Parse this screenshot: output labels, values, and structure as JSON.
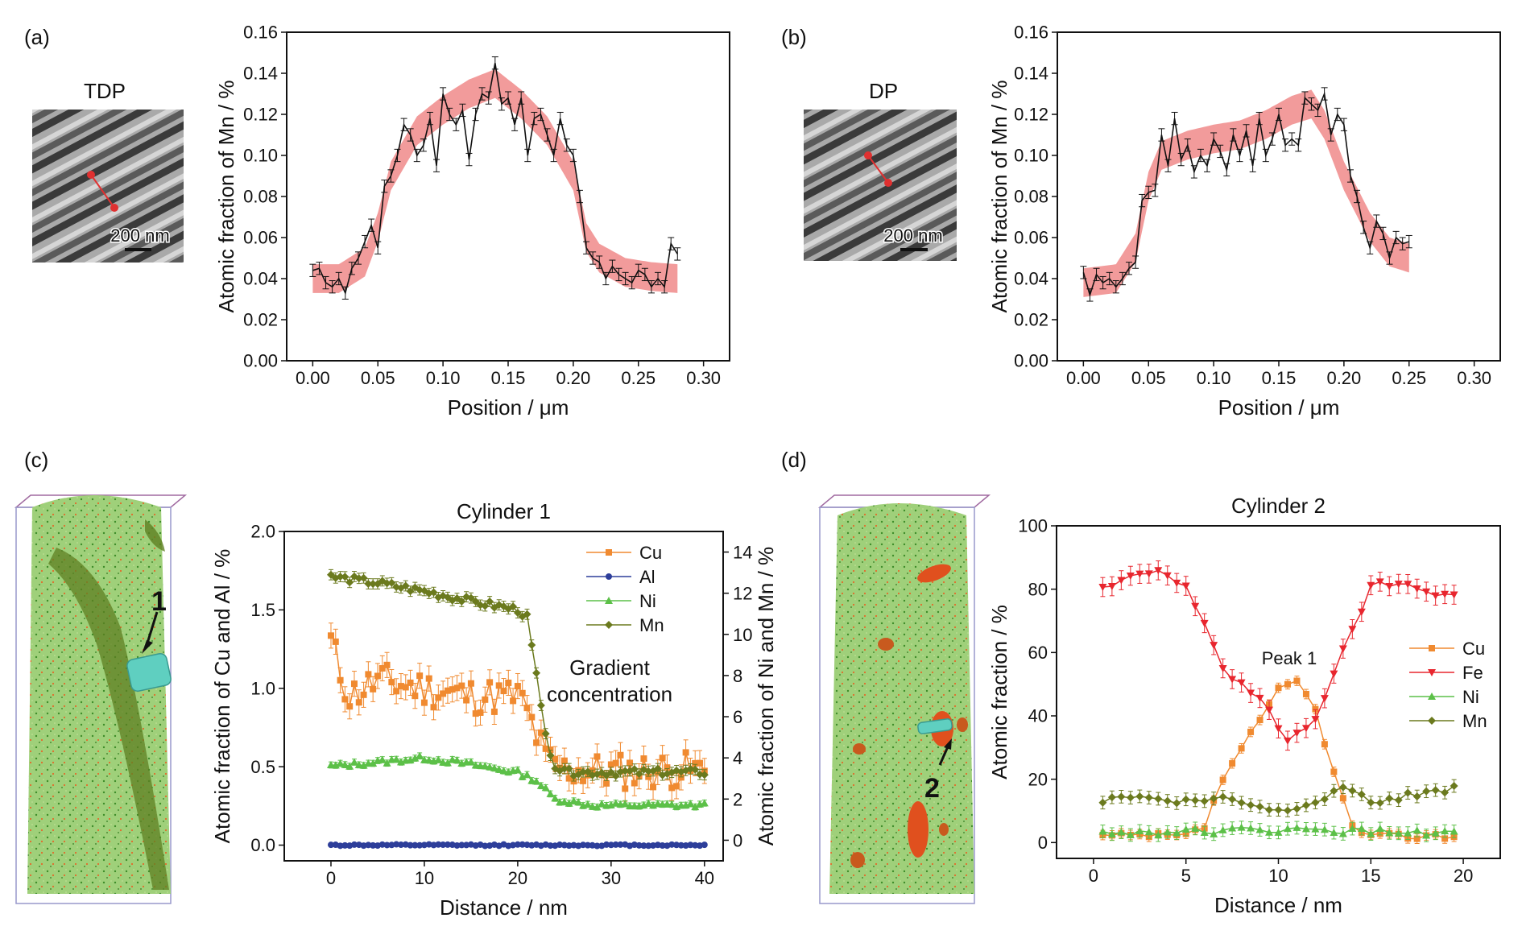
{
  "panels": {
    "a": {
      "label": "(a)",
      "image_title": "TDP",
      "scale_bar": "200 nm"
    },
    "b": {
      "label": "(b)",
      "image_title": "DP",
      "scale_bar": "200 nm"
    },
    "c": {
      "label": "(c)",
      "annotation_1": "Gradient",
      "annotation_2": "concentration",
      "marker": "1"
    },
    "d": {
      "label": "(d)",
      "annotation": "Peak 1",
      "marker": "2"
    }
  },
  "colors": {
    "Cu": "#f08a30",
    "Al": "#2d3e9a",
    "Ni": "#5cc048",
    "Mn": "#6b7a1e",
    "Fe": "#e8262e",
    "band": "#f08a8a",
    "line": "#111111"
  },
  "chart_data": [
    {
      "id": "a",
      "type": "line",
      "title": "",
      "xlabel": "Position / μm",
      "ylabel": "Atomic fraction of Mn / %",
      "xlim": [
        -0.02,
        0.32
      ],
      "ylim": [
        0.0,
        0.16
      ],
      "xticks": [
        0.0,
        0.05,
        0.1,
        0.15,
        0.2,
        0.25,
        0.3
      ],
      "xtick_labels": [
        "0.00",
        "0.05",
        "0.10",
        "0.15",
        "0.20",
        "0.25",
        "0.30"
      ],
      "yticks": [
        0.0,
        0.02,
        0.04,
        0.06,
        0.08,
        0.1,
        0.12,
        0.14,
        0.16
      ],
      "ytick_labels": [
        "0.00",
        "0.02",
        "0.04",
        "0.06",
        "0.08",
        "0.10",
        "0.12",
        "0.14",
        "0.16"
      ],
      "band": {
        "x": [
          0.0,
          0.02,
          0.04,
          0.05,
          0.06,
          0.08,
          0.1,
          0.12,
          0.14,
          0.16,
          0.18,
          0.2,
          0.21,
          0.22,
          0.24,
          0.26,
          0.28
        ],
        "center": [
          0.04,
          0.04,
          0.048,
          0.065,
          0.09,
          0.112,
          0.122,
          0.13,
          0.135,
          0.125,
          0.112,
          0.09,
          0.06,
          0.05,
          0.043,
          0.041,
          0.04
        ],
        "half_width": 0.007
      },
      "series": [
        {
          "name": "",
          "x": [
            0.0,
            0.005,
            0.01,
            0.015,
            0.02,
            0.025,
            0.03,
            0.035,
            0.04,
            0.045,
            0.05,
            0.055,
            0.06,
            0.065,
            0.07,
            0.075,
            0.08,
            0.085,
            0.09,
            0.095,
            0.1,
            0.105,
            0.11,
            0.115,
            0.12,
            0.125,
            0.13,
            0.135,
            0.14,
            0.145,
            0.15,
            0.155,
            0.16,
            0.165,
            0.17,
            0.175,
            0.18,
            0.185,
            0.19,
            0.195,
            0.2,
            0.205,
            0.21,
            0.215,
            0.22,
            0.225,
            0.23,
            0.235,
            0.24,
            0.245,
            0.25,
            0.255,
            0.26,
            0.265,
            0.27,
            0.275,
            0.28
          ],
          "y": [
            0.044,
            0.045,
            0.038,
            0.036,
            0.04,
            0.033,
            0.045,
            0.05,
            0.058,
            0.066,
            0.055,
            0.085,
            0.09,
            0.1,
            0.115,
            0.11,
            0.1,
            0.105,
            0.118,
            0.095,
            0.13,
            0.12,
            0.115,
            0.122,
            0.098,
            0.12,
            0.13,
            0.128,
            0.145,
            0.125,
            0.128,
            0.115,
            0.128,
            0.1,
            0.118,
            0.12,
            0.11,
            0.1,
            0.118,
            0.105,
            0.1,
            0.08,
            0.055,
            0.05,
            0.048,
            0.04,
            0.046,
            0.042,
            0.04,
            0.038,
            0.044,
            0.042,
            0.036,
            0.04,
            0.036,
            0.057,
            0.052
          ],
          "err": 0.003
        }
      ]
    },
    {
      "id": "b",
      "type": "line",
      "title": "",
      "xlabel": "Position / μm",
      "ylabel": "Atomic fraction of Mn / %",
      "xlim": [
        -0.02,
        0.32
      ],
      "ylim": [
        0.0,
        0.16
      ],
      "xticks": [
        0.0,
        0.05,
        0.1,
        0.15,
        0.2,
        0.25,
        0.3
      ],
      "xtick_labels": [
        "0.00",
        "0.05",
        "0.10",
        "0.15",
        "0.20",
        "0.25",
        "0.30"
      ],
      "yticks": [
        0.0,
        0.02,
        0.04,
        0.06,
        0.08,
        0.1,
        0.12,
        0.14,
        0.16
      ],
      "ytick_labels": [
        "0.00",
        "0.02",
        "0.04",
        "0.06",
        "0.08",
        "0.10",
        "0.12",
        "0.14",
        "0.16"
      ],
      "band": {
        "x": [
          0.0,
          0.025,
          0.04,
          0.05,
          0.06,
          0.08,
          0.1,
          0.12,
          0.14,
          0.16,
          0.175,
          0.185,
          0.2,
          0.22,
          0.235,
          0.25
        ],
        "center": [
          0.038,
          0.04,
          0.055,
          0.085,
          0.1,
          0.105,
          0.108,
          0.11,
          0.115,
          0.122,
          0.125,
          0.115,
          0.09,
          0.065,
          0.053,
          0.05
        ],
        "half_width": 0.007
      },
      "series": [
        {
          "name": "",
          "x": [
            0.0,
            0.005,
            0.01,
            0.015,
            0.02,
            0.025,
            0.03,
            0.035,
            0.04,
            0.045,
            0.05,
            0.055,
            0.06,
            0.065,
            0.07,
            0.075,
            0.08,
            0.085,
            0.09,
            0.095,
            0.1,
            0.105,
            0.11,
            0.115,
            0.12,
            0.125,
            0.13,
            0.135,
            0.14,
            0.145,
            0.15,
            0.155,
            0.16,
            0.165,
            0.17,
            0.175,
            0.18,
            0.185,
            0.19,
            0.195,
            0.2,
            0.205,
            0.21,
            0.215,
            0.22,
            0.225,
            0.23,
            0.235,
            0.24,
            0.245,
            0.25
          ],
          "y": [
            0.043,
            0.032,
            0.042,
            0.038,
            0.04,
            0.036,
            0.04,
            0.045,
            0.048,
            0.078,
            0.082,
            0.083,
            0.11,
            0.095,
            0.118,
            0.098,
            0.105,
            0.092,
            0.1,
            0.095,
            0.108,
            0.102,
            0.093,
            0.11,
            0.1,
            0.112,
            0.095,
            0.118,
            0.1,
            0.108,
            0.12,
            0.105,
            0.108,
            0.105,
            0.128,
            0.125,
            0.122,
            0.13,
            0.11,
            0.12,
            0.115,
            0.09,
            0.08,
            0.065,
            0.055,
            0.068,
            0.062,
            0.05,
            0.06,
            0.057,
            0.058
          ],
          "err": 0.003
        }
      ]
    },
    {
      "id": "c",
      "type": "line",
      "title": "Cylinder 1",
      "xlabel": "Distance / nm",
      "ylabel": "Atomic fraction of Cu and Al / %",
      "y2label": "Atomic fraction of Ni and Mn / %",
      "xlim": [
        -5,
        42
      ],
      "ylim": [
        -0.1,
        2.0
      ],
      "y2lim": [
        -1.0,
        15.0
      ],
      "xticks": [
        0,
        10,
        20,
        30,
        40
      ],
      "xtick_labels": [
        "0",
        "10",
        "20",
        "30",
        "40"
      ],
      "yticks": [
        0.0,
        0.5,
        1.0,
        1.5,
        2.0
      ],
      "ytick_labels": [
        "0.0",
        "0.5",
        "1.0",
        "1.5",
        "2.0"
      ],
      "y2ticks": [
        0,
        2,
        4,
        6,
        8,
        10,
        12,
        14
      ],
      "y2tick_labels": [
        "0",
        "2",
        "4",
        "6",
        "8",
        "10",
        "12",
        "14"
      ],
      "legend": [
        {
          "name": "Cu",
          "marker": "square"
        },
        {
          "name": "Al",
          "marker": "circle"
        },
        {
          "name": "Ni",
          "marker": "triangle"
        },
        {
          "name": "Mn",
          "marker": "diamond"
        }
      ],
      "series_piecewise": {
        "Cu": {
          "axis": "left",
          "knots_x": [
            0,
            1,
            2,
            5,
            10,
            15,
            20,
            21,
            22,
            23,
            25,
            30,
            40
          ],
          "knots_y": [
            1.3,
            1.1,
            0.95,
            1.05,
            1.0,
            0.95,
            0.95,
            0.85,
            0.7,
            0.55,
            0.48,
            0.47,
            0.48
          ],
          "noise": 0.12,
          "err": 0.08
        },
        "Al": {
          "axis": "left",
          "knots_x": [
            0,
            40
          ],
          "knots_y": [
            0.0,
            0.0
          ],
          "noise": 0.005,
          "err": 0.01
        },
        "Ni": {
          "axis": "right",
          "knots_x": [
            0,
            5,
            10,
            15,
            20,
            22,
            24,
            28,
            40
          ],
          "knots_y": [
            3.6,
            3.8,
            4.0,
            3.7,
            3.3,
            2.9,
            2.0,
            1.7,
            1.7
          ],
          "noise": 0.12,
          "err": 0.15
        },
        "Mn": {
          "axis": "right",
          "knots_x": [
            0,
            5,
            10,
            15,
            20,
            21,
            22,
            23,
            24,
            25,
            30,
            40
          ],
          "knots_y": [
            12.8,
            12.5,
            12.1,
            11.6,
            11.2,
            10.8,
            8.0,
            5.0,
            3.6,
            3.3,
            3.3,
            3.3
          ],
          "noise": 0.18,
          "err": 0.25
        }
      }
    },
    {
      "id": "d",
      "type": "line",
      "title": "Cylinder 2",
      "xlabel": "Distance / nm",
      "ylabel": "Atomic fraction / %",
      "xlim": [
        -2,
        22
      ],
      "ylim": [
        -5,
        100
      ],
      "xticks": [
        0,
        5,
        10,
        15,
        20
      ],
      "xtick_labels": [
        "0",
        "5",
        "10",
        "15",
        "20"
      ],
      "yticks": [
        0,
        20,
        40,
        60,
        80,
        100
      ],
      "ytick_labels": [
        "0",
        "20",
        "40",
        "60",
        "80",
        "100"
      ],
      "legend": [
        {
          "name": "Cu",
          "marker": "square"
        },
        {
          "name": "Fe",
          "marker": "triangle-down"
        },
        {
          "name": "Ni",
          "marker": "triangle"
        },
        {
          "name": "Mn",
          "marker": "diamond"
        }
      ],
      "series_piecewise": {
        "Cu": {
          "knots_x": [
            0.5,
            5,
            6,
            7,
            8,
            9,
            10,
            11,
            12,
            13,
            14,
            15,
            19.5
          ],
          "knots_y": [
            2,
            2,
            5,
            20,
            30,
            38,
            48,
            51,
            42,
            22,
            5,
            2,
            2
          ],
          "noise": 1.0,
          "err": 1.5
        },
        "Fe": {
          "knots_x": [
            0.5,
            3.5,
            5,
            6,
            7,
            8,
            9,
            10,
            10.5,
            11,
            12,
            13,
            14,
            15,
            16,
            19.5
          ],
          "knots_y": [
            80,
            86,
            80,
            70,
            55,
            50,
            45,
            36,
            33,
            34,
            40,
            52,
            68,
            80,
            82,
            78
          ],
          "noise": 1.5,
          "err": 3
        },
        "Ni": {
          "knots_x": [
            0.5,
            10,
            19.5
          ],
          "knots_y": [
            3,
            4,
            3
          ],
          "noise": 1.0,
          "err": 2
        },
        "Mn": {
          "knots_x": [
            0.5,
            1,
            3,
            5,
            7,
            8,
            10,
            12,
            13.5,
            15,
            19.5
          ],
          "knots_y": [
            12,
            15,
            14,
            13,
            14,
            13,
            10,
            13,
            18,
            13,
            17
          ],
          "noise": 1.0,
          "err": 2
        }
      }
    }
  ]
}
